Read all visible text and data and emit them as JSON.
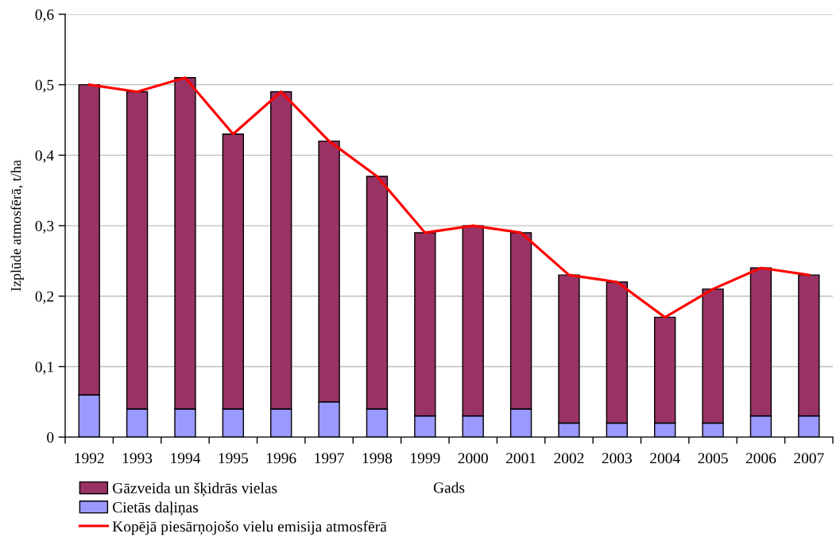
{
  "chart_data": {
    "type": "bar",
    "stacked": true,
    "xlabel": "Gads",
    "ylabel": "Izplūde atmosfērā, t/ha",
    "categories": [
      "1992",
      "1993",
      "1994",
      "1995",
      "1996",
      "1997",
      "1998",
      "1999",
      "2000",
      "2001",
      "2002",
      "2003",
      "2004",
      "2005",
      "2006",
      "2007"
    ],
    "series": [
      {
        "name": "Cietās daļiņas",
        "color": "#9999ff",
        "values": [
          0.06,
          0.04,
          0.04,
          0.04,
          0.04,
          0.05,
          0.04,
          0.03,
          0.03,
          0.04,
          0.02,
          0.02,
          0.02,
          0.02,
          0.03,
          0.03
        ]
      },
      {
        "name": "Gāzveida un šķidrās vielas",
        "color": "#993366",
        "values": [
          0.44,
          0.45,
          0.47,
          0.39,
          0.45,
          0.37,
          0.33,
          0.26,
          0.27,
          0.25,
          0.21,
          0.2,
          0.15,
          0.19,
          0.21,
          0.2
        ]
      },
      {
        "name": "Kopējā piesārņojošo vielu emisija atmosfērā",
        "type": "line",
        "color": "#ff0000",
        "values": [
          0.5,
          0.49,
          0.51,
          0.43,
          0.49,
          0.42,
          0.37,
          0.29,
          0.3,
          0.29,
          0.23,
          0.22,
          0.17,
          0.21,
          0.24,
          0.23
        ]
      }
    ],
    "ylim": [
      0,
      0.6
    ],
    "yticks": [
      0,
      {
        "value": 0.1,
        "label": "0,1"
      },
      {
        "value": 0.2,
        "label": "0,2"
      },
      {
        "value": 0.3,
        "label": "0,3"
      },
      {
        "value": 0.4,
        "label": "0,4"
      },
      {
        "value": 0.5,
        "label": "0,5"
      },
      {
        "value": 0.6,
        "label": "0,6"
      }
    ],
    "grid": "y",
    "legend": "bottom left",
    "marker": "none",
    "line_style": "solid"
  }
}
